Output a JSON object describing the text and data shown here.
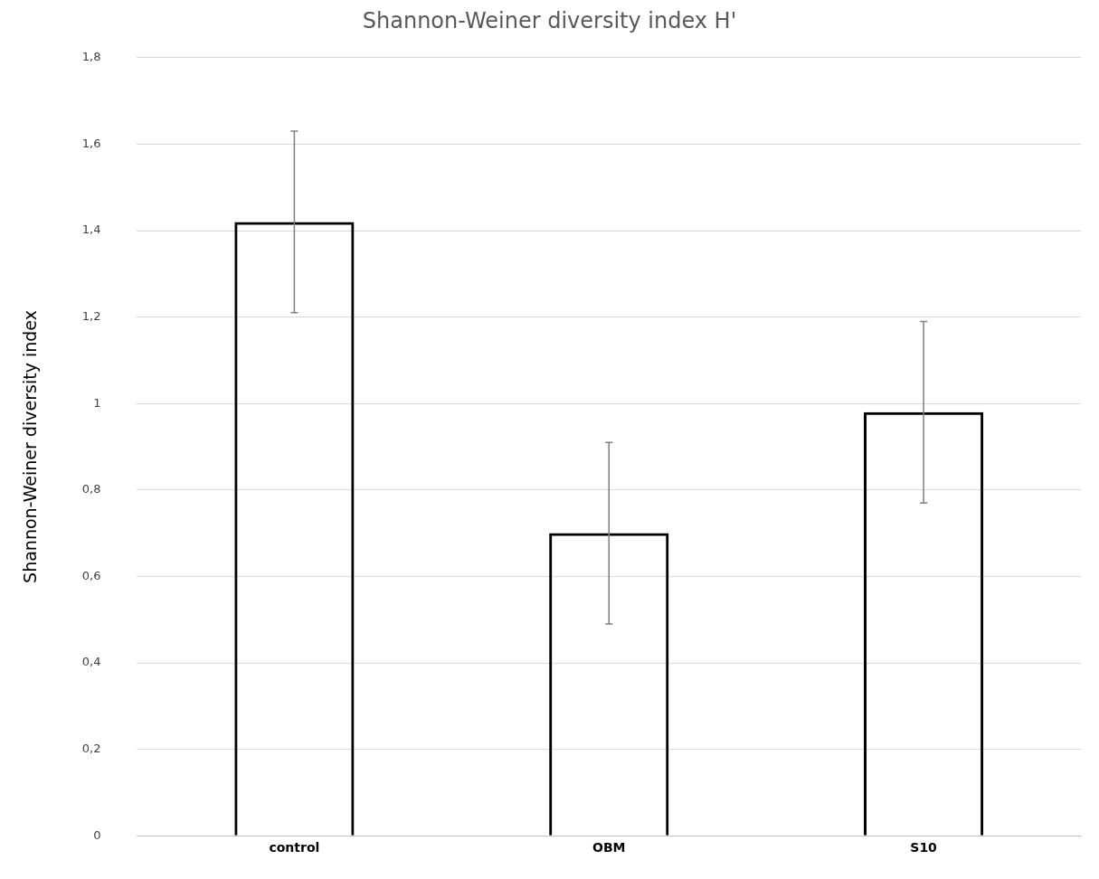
{
  "chart_data": {
    "type": "bar",
    "title": "Shannon-Weiner diversity index H'",
    "ylabel": "Shannon-Weiner diversity index",
    "categories": [
      "control",
      "OBM",
      "S10"
    ],
    "values": [
      1.42,
      0.7,
      0.98
    ],
    "errors": [
      0.21,
      0.21,
      0.21
    ],
    "color": "#000000",
    "ylim": [
      0,
      1.8
    ],
    "yticks": [
      0,
      {
        "value": 0.2,
        "label": "0,2"
      },
      {
        "value": 0.4,
        "label": "0,4"
      },
      {
        "value": 0.6,
        "label": "0,6"
      },
      {
        "value": 0.8,
        "label": "0,8"
      },
      1,
      {
        "value": 1.2,
        "label": "1,2"
      },
      {
        "value": 1.4,
        "label": "1,4"
      },
      {
        "value": 1.6,
        "label": "1,6"
      },
      {
        "value": 1.8,
        "label": "1,8"
      }
    ],
    "grid": "y",
    "legend": false
  }
}
